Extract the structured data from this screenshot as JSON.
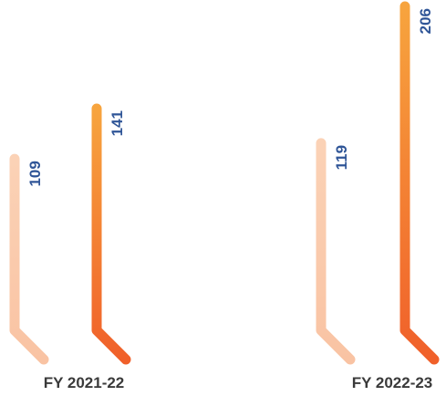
{
  "chart_data": {
    "type": "bar",
    "categories": [
      "FY 2021-22",
      "FY 2022-23"
    ],
    "series": [
      {
        "values": [
          109,
          119
        ],
        "color_top": "#fbd2b6",
        "color_bottom": "#f9c3a3"
      },
      {
        "values": [
          141,
          206
        ],
        "color_top": "#f7a43e",
        "color_bottom": "#f0602a"
      }
    ],
    "value_label_color": "#2f5597",
    "category_label_color": "#3a3a3a"
  }
}
